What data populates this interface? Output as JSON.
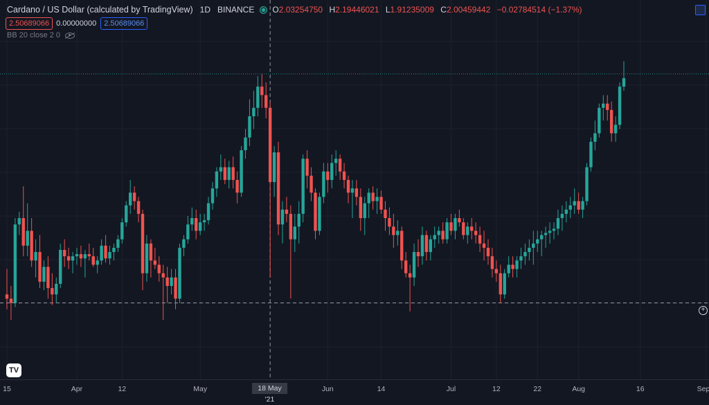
{
  "header": {
    "title": "Cardano / US Dollar (calculated by TradingView)",
    "interval": "1D",
    "exchange": "BINANCE",
    "ohlc": {
      "o_label": "O",
      "o": "2.03254750",
      "h_label": "H",
      "h": "2.19446021",
      "l_label": "L",
      "l": "1.91235009",
      "c_label": "C",
      "c": "2.00459442",
      "change": "−0.02784514 (−1.37%)"
    }
  },
  "indicator": {
    "upper": "2.50689066",
    "middle": "0.00000000",
    "lower": "2.50689066",
    "label": "BB 20 close 2 0"
  },
  "crosshair": {
    "x_label": "18 May '21"
  },
  "logo_text": "TV",
  "plus_icon": "+",
  "colors": {
    "up": "#26a69a",
    "down": "#ef5350",
    "background": "#131722",
    "grid": "#1e222d"
  },
  "chart_data": {
    "type": "candlestick",
    "series_name": "Cardano / US Dollar",
    "x_tick_labels": [
      {
        "label": "15",
        "day": 0
      },
      {
        "label": "Apr",
        "day": 17
      },
      {
        "label": "12",
        "day": 28
      },
      {
        "label": "May",
        "day": 47
      },
      {
        "label": "Jun",
        "day": 78
      },
      {
        "label": "14",
        "day": 91
      },
      {
        "label": "Jul",
        "day": 108
      },
      {
        "label": "12",
        "day": 119
      },
      {
        "label": "22",
        "day": 129
      },
      {
        "label": "Aug",
        "day": 139
      },
      {
        "label": "16",
        "day": 154
      },
      {
        "label": "Sep",
        "day": 170
      }
    ],
    "ylim": [
      0.85,
      2.28
    ],
    "reference_levels": {
      "dotted_top": 2.16,
      "dashed_crosshair": 1.08
    },
    "crosshair_day": 64,
    "ohlc": [
      [
        1.12,
        1.24,
        1.05,
        1.1
      ],
      [
        1.1,
        1.16,
        1.0,
        1.08
      ],
      [
        1.08,
        1.48,
        1.06,
        1.45
      ],
      [
        1.45,
        1.51,
        1.4,
        1.48
      ],
      [
        1.48,
        1.63,
        1.3,
        1.35
      ],
      [
        1.35,
        1.55,
        1.3,
        1.42
      ],
      [
        1.42,
        1.48,
        1.25,
        1.28
      ],
      [
        1.28,
        1.38,
        1.2,
        1.32
      ],
      [
        1.32,
        1.4,
        1.15,
        1.18
      ],
      [
        1.18,
        1.28,
        1.14,
        1.25
      ],
      [
        1.25,
        1.3,
        1.1,
        1.15
      ],
      [
        1.15,
        1.22,
        1.07,
        1.12
      ],
      [
        1.12,
        1.2,
        1.08,
        1.17
      ],
      [
        1.17,
        1.36,
        1.15,
        1.33
      ],
      [
        1.33,
        1.38,
        1.25,
        1.3
      ],
      [
        1.3,
        1.34,
        1.24,
        1.28
      ],
      [
        1.28,
        1.32,
        1.22,
        1.3
      ],
      [
        1.3,
        1.34,
        1.26,
        1.31
      ],
      [
        1.31,
        1.35,
        1.25,
        1.29
      ],
      [
        1.29,
        1.33,
        1.2,
        1.31
      ],
      [
        1.31,
        1.36,
        1.28,
        1.3
      ],
      [
        1.3,
        1.34,
        1.25,
        1.26
      ],
      [
        1.26,
        1.3,
        1.22,
        1.28
      ],
      [
        1.28,
        1.38,
        1.26,
        1.35
      ],
      [
        1.35,
        1.4,
        1.27,
        1.29
      ],
      [
        1.29,
        1.35,
        1.26,
        1.32
      ],
      [
        1.32,
        1.36,
        1.28,
        1.34
      ],
      [
        1.34,
        1.4,
        1.32,
        1.38
      ],
      [
        1.38,
        1.48,
        1.36,
        1.46
      ],
      [
        1.46,
        1.56,
        1.44,
        1.54
      ],
      [
        1.54,
        1.66,
        1.5,
        1.6
      ],
      [
        1.6,
        1.63,
        1.52,
        1.56
      ],
      [
        1.56,
        1.58,
        1.46,
        1.5
      ],
      [
        1.5,
        1.52,
        1.14,
        1.22
      ],
      [
        1.22,
        1.4,
        1.18,
        1.36
      ],
      [
        1.36,
        1.38,
        1.2,
        1.28
      ],
      [
        1.28,
        1.34,
        1.24,
        1.26
      ],
      [
        1.26,
        1.3,
        1.18,
        1.22
      ],
      [
        1.22,
        1.26,
        1.0,
        1.2
      ],
      [
        1.2,
        1.25,
        1.08,
        1.16
      ],
      [
        1.16,
        1.24,
        1.12,
        1.2
      ],
      [
        1.2,
        1.24,
        1.05,
        1.1
      ],
      [
        1.1,
        1.36,
        1.08,
        1.34
      ],
      [
        1.34,
        1.4,
        1.3,
        1.38
      ],
      [
        1.38,
        1.49,
        1.36,
        1.45
      ],
      [
        1.45,
        1.53,
        1.42,
        1.48
      ],
      [
        1.48,
        1.52,
        1.38,
        1.42
      ],
      [
        1.42,
        1.5,
        1.4,
        1.46
      ],
      [
        1.46,
        1.5,
        1.42,
        1.47
      ],
      [
        1.47,
        1.58,
        1.45,
        1.55
      ],
      [
        1.55,
        1.65,
        1.52,
        1.62
      ],
      [
        1.62,
        1.72,
        1.58,
        1.7
      ],
      [
        1.7,
        1.78,
        1.66,
        1.72
      ],
      [
        1.72,
        1.76,
        1.64,
        1.66
      ],
      [
        1.66,
        1.75,
        1.62,
        1.72
      ],
      [
        1.72,
        1.77,
        1.62,
        1.66
      ],
      [
        1.66,
        1.7,
        1.55,
        1.6
      ],
      [
        1.6,
        1.82,
        1.58,
        1.8
      ],
      [
        1.8,
        1.9,
        1.76,
        1.86
      ],
      [
        1.86,
        2.04,
        1.82,
        1.96
      ],
      [
        1.96,
        2.08,
        1.9,
        2.0
      ],
      [
        2.0,
        2.15,
        1.96,
        2.1
      ],
      [
        2.1,
        2.16,
        2.0,
        2.06
      ],
      [
        2.06,
        2.12,
        1.95,
        2.0
      ],
      [
        2.0,
        2.03,
        1.2,
        1.65
      ],
      [
        1.65,
        1.82,
        1.58,
        1.79
      ],
      [
        1.79,
        1.84,
        1.4,
        1.45
      ],
      [
        1.45,
        1.56,
        1.36,
        1.52
      ],
      [
        1.52,
        1.58,
        1.46,
        1.5
      ],
      [
        1.5,
        1.54,
        1.1,
        1.38
      ],
      [
        1.38,
        1.5,
        1.32,
        1.44
      ],
      [
        1.44,
        1.56,
        1.36,
        1.5
      ],
      [
        1.5,
        1.78,
        1.46,
        1.76
      ],
      [
        1.76,
        1.8,
        1.62,
        1.68
      ],
      [
        1.68,
        1.72,
        1.56,
        1.6
      ],
      [
        1.6,
        1.62,
        1.38,
        1.42
      ],
      [
        1.42,
        1.6,
        1.4,
        1.58
      ],
      [
        1.58,
        1.74,
        1.55,
        1.7
      ],
      [
        1.7,
        1.74,
        1.6,
        1.66
      ],
      [
        1.66,
        1.78,
        1.62,
        1.74
      ],
      [
        1.74,
        1.8,
        1.68,
        1.76
      ],
      [
        1.76,
        1.78,
        1.66,
        1.7
      ],
      [
        1.7,
        1.74,
        1.62,
        1.66
      ],
      [
        1.66,
        1.68,
        1.55,
        1.6
      ],
      [
        1.6,
        1.66,
        1.48,
        1.62
      ],
      [
        1.62,
        1.66,
        1.54,
        1.58
      ],
      [
        1.58,
        1.62,
        1.42,
        1.48
      ],
      [
        1.48,
        1.58,
        1.4,
        1.55
      ],
      [
        1.55,
        1.62,
        1.48,
        1.6
      ],
      [
        1.6,
        1.63,
        1.52,
        1.56
      ],
      [
        1.56,
        1.62,
        1.5,
        1.58
      ],
      [
        1.58,
        1.61,
        1.5,
        1.52
      ],
      [
        1.52,
        1.56,
        1.42,
        1.48
      ],
      [
        1.48,
        1.53,
        1.4,
        1.44
      ],
      [
        1.44,
        1.5,
        1.34,
        1.4
      ],
      [
        1.4,
        1.47,
        1.35,
        1.42
      ],
      [
        1.42,
        1.44,
        1.24,
        1.28
      ],
      [
        1.28,
        1.32,
        1.2,
        1.22
      ],
      [
        1.22,
        1.26,
        1.04,
        1.2
      ],
      [
        1.2,
        1.36,
        1.16,
        1.32
      ],
      [
        1.32,
        1.38,
        1.25,
        1.3
      ],
      [
        1.3,
        1.44,
        1.26,
        1.4
      ],
      [
        1.4,
        1.42,
        1.28,
        1.32
      ],
      [
        1.32,
        1.4,
        1.28,
        1.38
      ],
      [
        1.38,
        1.44,
        1.34,
        1.4
      ],
      [
        1.4,
        1.44,
        1.36,
        1.42
      ],
      [
        1.42,
        1.46,
        1.36,
        1.38
      ],
      [
        1.38,
        1.48,
        1.36,
        1.46
      ],
      [
        1.46,
        1.5,
        1.4,
        1.42
      ],
      [
        1.42,
        1.5,
        1.38,
        1.48
      ],
      [
        1.48,
        1.52,
        1.44,
        1.46
      ],
      [
        1.46,
        1.48,
        1.38,
        1.4
      ],
      [
        1.4,
        1.46,
        1.36,
        1.44
      ],
      [
        1.44,
        1.48,
        1.38,
        1.42
      ],
      [
        1.42,
        1.46,
        1.36,
        1.4
      ],
      [
        1.4,
        1.44,
        1.32,
        1.36
      ],
      [
        1.36,
        1.42,
        1.28,
        1.34
      ],
      [
        1.34,
        1.38,
        1.26,
        1.3
      ],
      [
        1.3,
        1.34,
        1.2,
        1.24
      ],
      [
        1.24,
        1.28,
        1.18,
        1.22
      ],
      [
        1.22,
        1.26,
        1.08,
        1.12
      ],
      [
        1.12,
        1.24,
        1.1,
        1.22
      ],
      [
        1.22,
        1.3,
        1.2,
        1.26
      ],
      [
        1.26,
        1.3,
        1.2,
        1.24
      ],
      [
        1.24,
        1.3,
        1.2,
        1.28
      ],
      [
        1.28,
        1.34,
        1.24,
        1.3
      ],
      [
        1.3,
        1.36,
        1.26,
        1.32
      ],
      [
        1.32,
        1.38,
        1.28,
        1.34
      ],
      [
        1.34,
        1.42,
        1.26,
        1.36
      ],
      [
        1.36,
        1.42,
        1.32,
        1.38
      ],
      [
        1.38,
        1.42,
        1.3,
        1.4
      ],
      [
        1.4,
        1.44,
        1.34,
        1.41
      ],
      [
        1.41,
        1.46,
        1.36,
        1.42
      ],
      [
        1.42,
        1.46,
        1.38,
        1.43
      ],
      [
        1.43,
        1.52,
        1.4,
        1.48
      ],
      [
        1.48,
        1.54,
        1.42,
        1.5
      ],
      [
        1.5,
        1.56,
        1.46,
        1.52
      ],
      [
        1.52,
        1.58,
        1.48,
        1.54
      ],
      [
        1.54,
        1.62,
        1.5,
        1.56
      ],
      [
        1.56,
        1.6,
        1.5,
        1.52
      ],
      [
        1.52,
        1.58,
        1.48,
        1.56
      ],
      [
        1.56,
        1.74,
        1.54,
        1.72
      ],
      [
        1.72,
        1.86,
        1.7,
        1.84
      ],
      [
        1.84,
        1.94,
        1.8,
        1.88
      ],
      [
        1.88,
        2.02,
        1.86,
        2.0
      ],
      [
        2.0,
        2.06,
        1.94,
        2.02
      ],
      [
        2.02,
        2.06,
        1.94,
        1.99
      ],
      [
        1.99,
        2.03,
        1.84,
        1.88
      ],
      [
        1.88,
        1.96,
        1.84,
        1.92
      ],
      [
        1.92,
        2.12,
        1.9,
        2.1
      ],
      [
        2.1,
        2.22,
        2.08,
        2.14
      ]
    ]
  }
}
